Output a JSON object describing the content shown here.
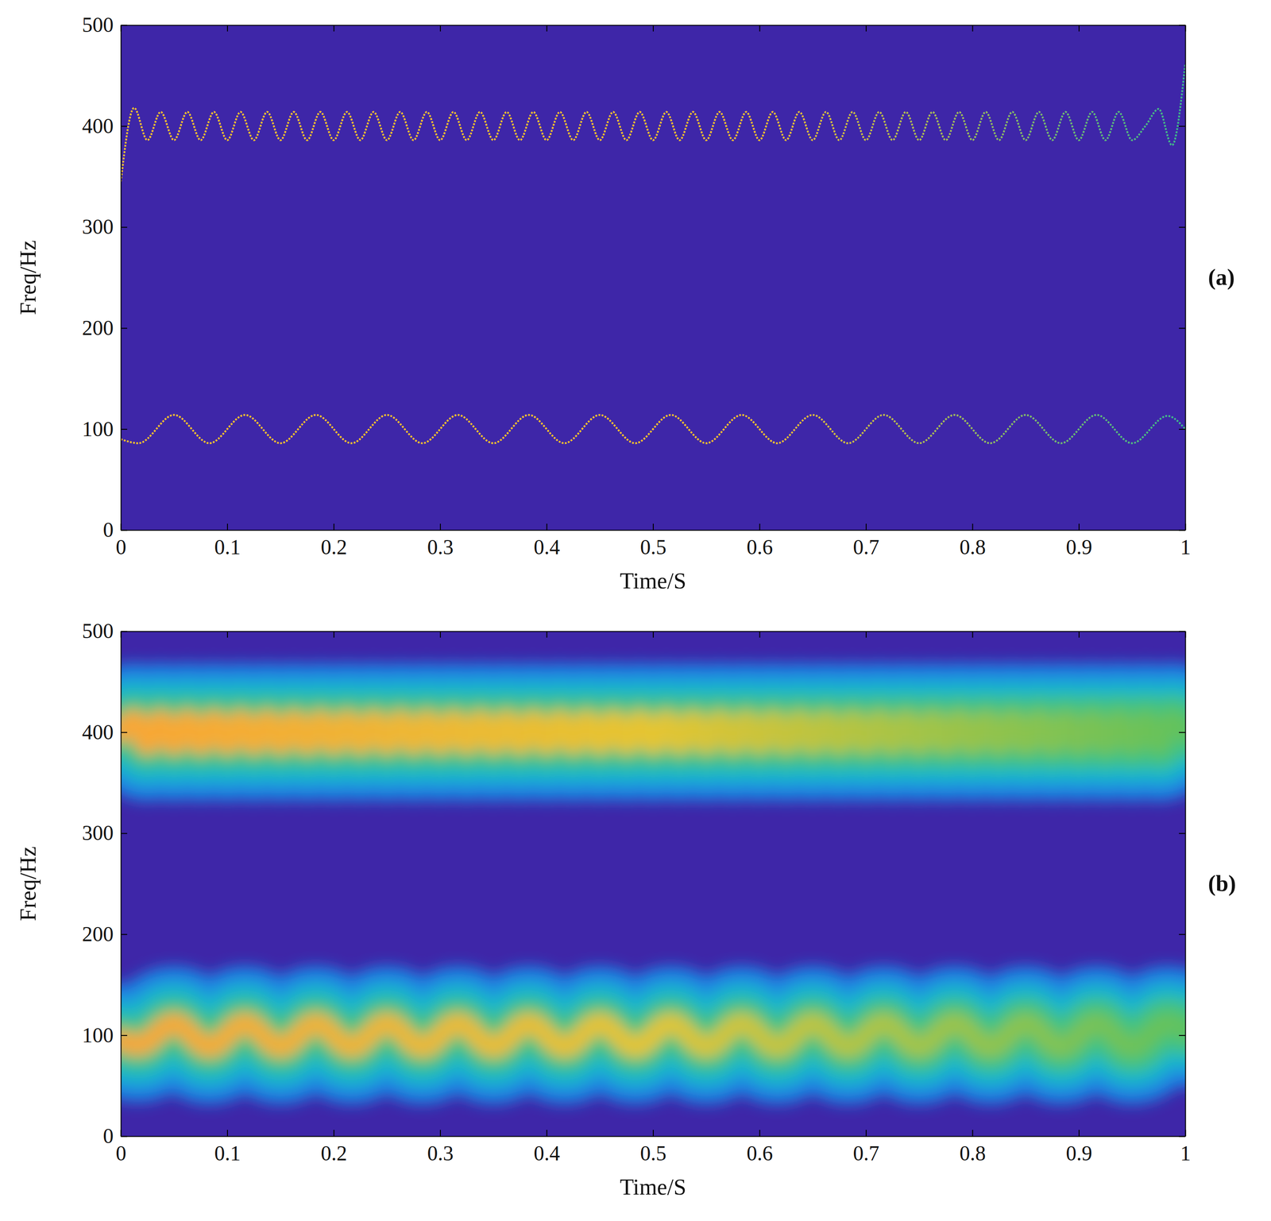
{
  "chart_data": [
    {
      "type": "line",
      "panel_label": "(a)",
      "x_label": "Time/S",
      "y_label": "Freq/Hz",
      "xlim": [
        0,
        1
      ],
      "ylim": [
        0,
        500
      ],
      "xticks": [
        0,
        0.1,
        0.2,
        0.3,
        0.4,
        0.5,
        0.6,
        0.7,
        0.8,
        0.9,
        1
      ],
      "yticks": [
        0,
        100,
        200,
        300,
        400,
        500
      ],
      "series": [
        {
          "color": "#f7c12e",
          "line_style": "dotted",
          "x": [
            0,
            0.0167,
            0.05,
            0.0833,
            0.1167,
            0.15,
            0.1833,
            0.2167,
            0.25,
            0.2833,
            0.3167,
            0.35,
            0.3833,
            0.4167,
            0.45,
            0.4833,
            0.5167,
            0.55,
            0.5833,
            0.6167,
            0.65,
            0.6833,
            0.7167,
            0.75,
            0.7833,
            0.8167,
            0.85,
            0.8833,
            0.9167,
            0.95,
            0.9833,
            1
          ],
          "values": [
            90,
            86,
            114,
            86,
            114,
            86,
            114,
            86,
            114,
            86,
            114,
            86,
            114,
            86,
            114,
            86,
            114,
            86,
            114,
            86,
            114,
            86,
            114,
            86,
            114,
            86,
            114,
            86,
            114,
            86,
            113,
            100
          ]
        },
        {
          "color": "#f7c12e",
          "line_style": "dotted",
          "x": [
            0,
            0.0125,
            0.025,
            0.0375,
            0.05,
            0.0625,
            0.075,
            0.0875,
            0.1,
            0.1125,
            0.125,
            0.1375,
            0.15,
            0.1625,
            0.175,
            0.1875,
            0.2,
            0.2125,
            0.225,
            0.2375,
            0.25,
            0.2625,
            0.275,
            0.2875,
            0.3,
            0.3125,
            0.325,
            0.3375,
            0.35,
            0.3625,
            0.375,
            0.3875,
            0.4,
            0.4125,
            0.425,
            0.4375,
            0.45,
            0.4625,
            0.475,
            0.4875,
            0.5,
            0.5125,
            0.525,
            0.5375,
            0.55,
            0.5625,
            0.575,
            0.5875,
            0.6,
            0.6125,
            0.625,
            0.6375,
            0.65,
            0.6625,
            0.675,
            0.6875,
            0.7,
            0.7125,
            0.725,
            0.7375,
            0.75,
            0.7625,
            0.775,
            0.7875,
            0.8,
            0.8125,
            0.825,
            0.8375,
            0.85,
            0.8625,
            0.875,
            0.8875,
            0.9,
            0.9125,
            0.925,
            0.9375,
            0.95,
            0.9625,
            0.975,
            0.9875,
            1
          ],
          "values": [
            345,
            418,
            386,
            414,
            386,
            414,
            386,
            414,
            386,
            414,
            386,
            414,
            386,
            414,
            386,
            414,
            386,
            414,
            386,
            414,
            386,
            414,
            386,
            414,
            386,
            414,
            386,
            414,
            386,
            414,
            386,
            414,
            386,
            414,
            386,
            414,
            386,
            414,
            386,
            414,
            386,
            414,
            386,
            414,
            386,
            414,
            386,
            414,
            386,
            414,
            386,
            414,
            386,
            414,
            386,
            414,
            386,
            414,
            386,
            414,
            386,
            414,
            386,
            414,
            386,
            414,
            386,
            414,
            386,
            414,
            386,
            414,
            386,
            414,
            386,
            414,
            386,
            400,
            417,
            381,
            462
          ]
        }
      ]
    },
    {
      "type": "line",
      "panel_label": "(b)",
      "x_label": "Time/S",
      "y_label": "Freq/Hz",
      "xlim": [
        0,
        1
      ],
      "ylim": [
        0,
        500
      ],
      "xticks": [
        0,
        0.1,
        0.2,
        0.3,
        0.4,
        0.5,
        0.6,
        0.7,
        0.8,
        0.9,
        1
      ],
      "yticks": [
        0,
        100,
        200,
        300,
        400,
        500
      ],
      "series": [
        {
          "color": "#f9a635",
          "line_style": "blurred",
          "x": [
            0,
            0.0167,
            0.05,
            0.0833,
            0.1167,
            0.15,
            0.1833,
            0.2167,
            0.25,
            0.2833,
            0.3167,
            0.35,
            0.3833,
            0.4167,
            0.45,
            0.4833,
            0.5167,
            0.55,
            0.5833,
            0.6167,
            0.65,
            0.6833,
            0.7167,
            0.75,
            0.7833,
            0.8167,
            0.85,
            0.8833,
            0.9167,
            0.95,
            0.9833,
            1
          ],
          "values": [
            95,
            90,
            112,
            88,
            112,
            88,
            112,
            88,
            112,
            88,
            112,
            88,
            112,
            88,
            112,
            88,
            112,
            88,
            112,
            88,
            112,
            88,
            112,
            88,
            112,
            88,
            112,
            88,
            112,
            88,
            112,
            105
          ]
        },
        {
          "color": "#f9a635",
          "line_style": "blurred",
          "x": [
            0,
            0.0125,
            0.025,
            0.0375,
            0.05,
            0.0625,
            0.075,
            0.0875,
            0.1,
            0.1125,
            0.125,
            0.1375,
            0.15,
            0.1625,
            0.175,
            0.1875,
            0.2,
            0.2125,
            0.225,
            0.2375,
            0.25,
            0.2625,
            0.275,
            0.2875,
            0.3,
            0.3125,
            0.325,
            0.3375,
            0.35,
            0.3625,
            0.375,
            0.3875,
            0.4,
            0.4125,
            0.425,
            0.4375,
            0.45,
            0.4625,
            0.475,
            0.4875,
            0.5,
            0.5125,
            0.525,
            0.5375,
            0.55,
            0.5625,
            0.575,
            0.5875,
            0.6,
            0.6125,
            0.625,
            0.6375,
            0.65,
            0.6625,
            0.675,
            0.6875,
            0.7,
            0.7125,
            0.725,
            0.7375,
            0.75,
            0.7625,
            0.775,
            0.7875,
            0.8,
            0.8125,
            0.825,
            0.8375,
            0.85,
            0.8625,
            0.875,
            0.8875,
            0.9,
            0.9125,
            0.925,
            0.9375,
            0.95,
            0.9625,
            0.975,
            0.9875,
            1
          ],
          "values": [
            400,
            412,
            388,
            412,
            388,
            412,
            388,
            412,
            388,
            412,
            388,
            412,
            388,
            412,
            388,
            412,
            388,
            412,
            388,
            412,
            388,
            412,
            388,
            412,
            388,
            412,
            388,
            412,
            388,
            412,
            388,
            412,
            388,
            412,
            388,
            412,
            388,
            412,
            388,
            412,
            388,
            412,
            388,
            412,
            388,
            412,
            388,
            412,
            388,
            412,
            388,
            412,
            388,
            412,
            388,
            412,
            388,
            412,
            388,
            412,
            388,
            412,
            388,
            412,
            388,
            412,
            388,
            412,
            388,
            412,
            388,
            412,
            388,
            412,
            388,
            412,
            388,
            412,
            388,
            412,
            400
          ]
        }
      ]
    }
  ]
}
